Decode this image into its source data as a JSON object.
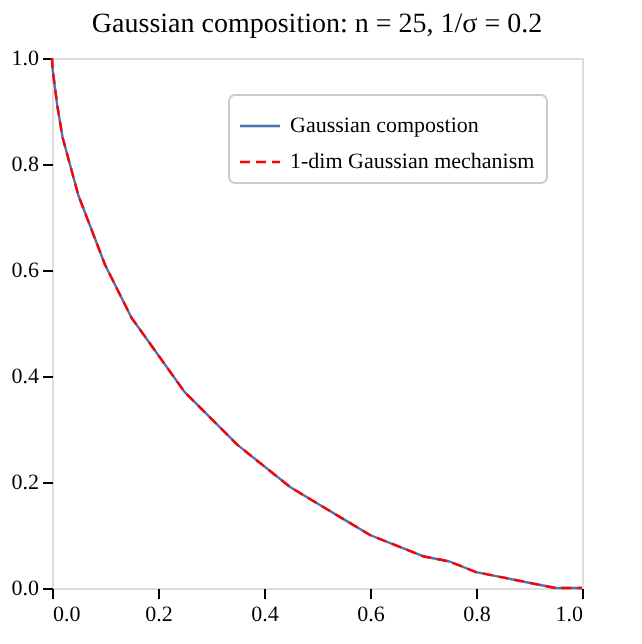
{
  "chart_data": {
    "type": "line",
    "title": "Gaussian composition: n = 25,  1/σ = 0.2",
    "x": [
      0,
      0.001,
      0.01,
      0.02,
      0.05,
      0.1,
      0.15,
      0.2,
      0.25,
      0.3,
      0.35,
      0.4,
      0.45,
      0.5,
      0.55,
      0.6,
      0.65,
      0.7,
      0.75,
      0.8,
      0.85,
      0.9,
      0.95,
      0.98,
      1
    ],
    "series": [
      {
        "name": "Gaussian compostion",
        "color": "#4c72b0",
        "line_style": "solid",
        "values": [
          1,
          0.98,
          0.91,
          0.85,
          0.74,
          0.61,
          0.51,
          0.44,
          0.37,
          0.32,
          0.27,
          0.23,
          0.19,
          0.16,
          0.13,
          0.1,
          0.08,
          0.06,
          0.05,
          0.03,
          0.02,
          0.01,
          0.0,
          0.0,
          0
        ]
      },
      {
        "name": "1-dim Gaussian mechanism",
        "color": "#ff0000",
        "line_style": "dashed",
        "values": [
          1,
          0.98,
          0.91,
          0.85,
          0.74,
          0.61,
          0.51,
          0.44,
          0.37,
          0.32,
          0.27,
          0.23,
          0.19,
          0.16,
          0.13,
          0.1,
          0.08,
          0.06,
          0.05,
          0.03,
          0.02,
          0.01,
          0.0,
          0.0,
          0
        ]
      }
    ],
    "xlim": [
      0,
      1
    ],
    "ylim": [
      0,
      1
    ],
    "xticks": [
      {
        "value": 0,
        "label": "0.0"
      },
      {
        "value": 0.2,
        "label": "0.2"
      },
      {
        "value": 0.4,
        "label": "0.4"
      },
      {
        "value": 0.6,
        "label": "0.6"
      },
      {
        "value": 0.8,
        "label": "0.8"
      },
      {
        "value": 1,
        "label": "1.0"
      }
    ],
    "yticks": [
      {
        "value": 0,
        "label": "0.0"
      },
      {
        "value": 0.2,
        "label": "0.2"
      },
      {
        "value": 0.4,
        "label": "0.4"
      },
      {
        "value": 0.6,
        "label": "0.6"
      },
      {
        "value": 0.8,
        "label": "0.8"
      },
      {
        "value": 1,
        "label": "1.0"
      }
    ],
    "legend": "top right",
    "grid": false
  }
}
